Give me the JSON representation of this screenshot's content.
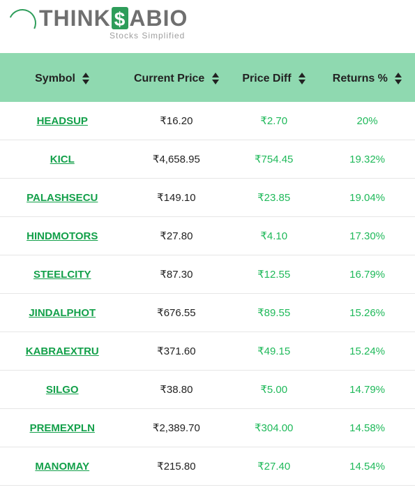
{
  "logo": {
    "main_before": "THINK",
    "main_after": "ABIO",
    "tagline": "Stocks Simplified"
  },
  "table": {
    "columns": [
      {
        "label": "Symbol"
      },
      {
        "label": "Current Price"
      },
      {
        "label": "Price Diff"
      },
      {
        "label": "Returns %"
      }
    ],
    "header_bg": "#8fd9b0",
    "symbol_color": "#13a04a",
    "positive_color": "#1fb95a",
    "rows": [
      {
        "symbol": "HEADSUP",
        "price": "₹16.20",
        "diff": "₹2.70",
        "returns": "20%"
      },
      {
        "symbol": "KICL",
        "price": "₹4,658.95",
        "diff": "₹754.45",
        "returns": "19.32%"
      },
      {
        "symbol": "PALASHSECU",
        "price": "₹149.10",
        "diff": "₹23.85",
        "returns": "19.04%"
      },
      {
        "symbol": "HINDMOTORS",
        "price": "₹27.80",
        "diff": "₹4.10",
        "returns": "17.30%"
      },
      {
        "symbol": "STEELCITY",
        "price": "₹87.30",
        "diff": "₹12.55",
        "returns": "16.79%"
      },
      {
        "symbol": "JINDALPHOT",
        "price": "₹676.55",
        "diff": "₹89.55",
        "returns": "15.26%"
      },
      {
        "symbol": "KABRAEXTRU",
        "price": "₹371.60",
        "diff": "₹49.15",
        "returns": "15.24%"
      },
      {
        "symbol": "SILGO",
        "price": "₹38.80",
        "diff": "₹5.00",
        "returns": "14.79%"
      },
      {
        "symbol": "PREMEXPLN",
        "price": "₹2,389.70",
        "diff": "₹304.00",
        "returns": "14.58%"
      },
      {
        "symbol": "MANOMAY",
        "price": "₹215.80",
        "diff": "₹27.40",
        "returns": "14.54%"
      }
    ]
  }
}
